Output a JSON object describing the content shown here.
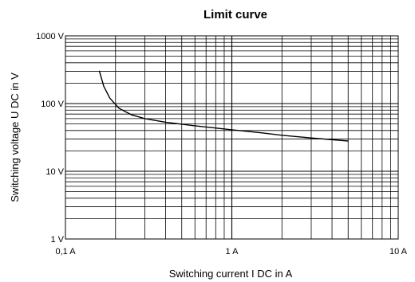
{
  "chart_data": {
    "type": "line",
    "title": "Limit curve",
    "xlabel": "Switching current I DC in A",
    "ylabel": "Switching voltage U DC in V",
    "x_scale": "log",
    "y_scale": "log",
    "xlim": [
      0.1,
      10
    ],
    "ylim": [
      1,
      1000
    ],
    "grid": true,
    "x_ticks": [
      {
        "value": 0.1,
        "label": "0,1 A"
      },
      {
        "value": 1,
        "label": "1 A"
      },
      {
        "value": 10,
        "label": "10 A"
      }
    ],
    "y_ticks": [
      {
        "value": 1,
        "label": "1 V"
      },
      {
        "value": 10,
        "label": "10 V"
      },
      {
        "value": 100,
        "label": "100 V"
      },
      {
        "value": 1000,
        "label": "1000 V"
      }
    ],
    "series": [
      {
        "color": "#000000",
        "points": [
          {
            "x": 0.16,
            "y": 300
          },
          {
            "x": 0.17,
            "y": 180
          },
          {
            "x": 0.185,
            "y": 120
          },
          {
            "x": 0.21,
            "y": 85
          },
          {
            "x": 0.25,
            "y": 68
          },
          {
            "x": 0.3,
            "y": 60
          },
          {
            "x": 0.4,
            "y": 53
          },
          {
            "x": 0.6,
            "y": 47
          },
          {
            "x": 1.0,
            "y": 41
          },
          {
            "x": 1.5,
            "y": 37
          },
          {
            "x": 2.0,
            "y": 34
          },
          {
            "x": 3.0,
            "y": 31
          },
          {
            "x": 5.0,
            "y": 28
          }
        ]
      }
    ]
  }
}
